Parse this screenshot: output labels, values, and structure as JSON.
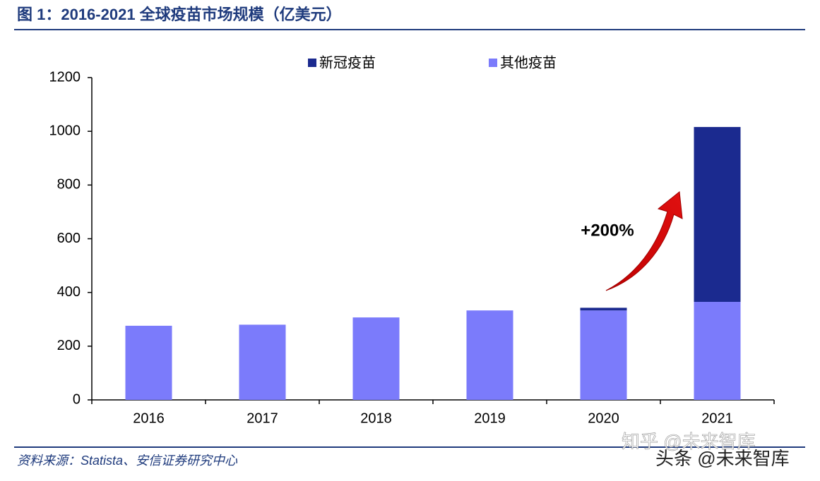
{
  "chart_data": {
    "type": "stacked_bar",
    "title": "图 1：2016-2021 全球疫苗市场规模（亿美元）",
    "categories": [
      "2016",
      "2017",
      "2018",
      "2019",
      "2020",
      "2021"
    ],
    "series": [
      {
        "name": "新冠疫苗",
        "color": "#1b2a8f",
        "values": [
          0,
          0,
          0,
          0,
          10,
          651
        ]
      },
      {
        "name": "其他疫苗",
        "color": "#7b7bfb",
        "values": [
          276,
          280,
          307,
          333,
          333,
          365
        ]
      }
    ],
    "ylim": [
      0,
      1200
    ],
    "yticks": [
      0,
      200,
      400,
      600,
      800,
      1000,
      1200
    ],
    "annotation": "+200%",
    "source": "资料来源：Statista、安信证券研究中心",
    "watermarks": [
      "知乎 @未来智库",
      "头条 @未来智库"
    ]
  }
}
